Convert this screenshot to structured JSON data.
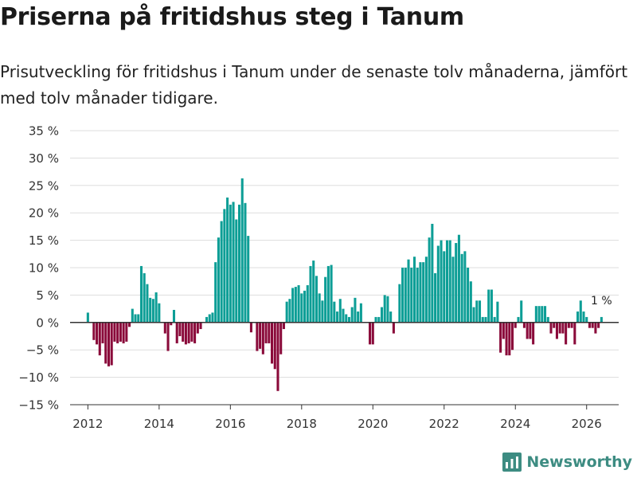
{
  "title": "Priserna på fritidshus steg i Tanum",
  "subtitle": "Prisutveckling för fritidshus i Tanum under de senaste tolv månaderna, jämfört med tolv månader tidigare.",
  "brand": {
    "name": "Newsworthy",
    "icon": "bar-chart-logo-icon"
  },
  "colors": {
    "positive": "#0d9e96",
    "negative": "#8a0a3a",
    "zero_line": "#333333",
    "grid": "#dddddd",
    "brand": "#3d8c82"
  },
  "chart_data": {
    "type": "bar",
    "title": "Priserna på fritidshus steg i Tanum",
    "xlabel": "",
    "ylabel": "",
    "ylim": [
      -15,
      35
    ],
    "y_ticks": [
      -15,
      -10,
      -5,
      0,
      5,
      10,
      15,
      20,
      25,
      30,
      35
    ],
    "y_tick_labels": [
      "−15 %",
      "−10 %",
      "−5 %",
      "0 %",
      "5 %",
      "10 %",
      "15 %",
      "20 %",
      "25 %",
      "30 %",
      "35 %"
    ],
    "xlim": [
      2011.5,
      2026.9
    ],
    "x_ticks": [
      2012,
      2014,
      2016,
      2018,
      2020,
      2022,
      2024,
      2026
    ],
    "x_tick_labels": [
      "2012",
      "2014",
      "2016",
      "2018",
      "2020",
      "2022",
      "2024",
      "2026"
    ],
    "start": {
      "year": 2012,
      "month": 1
    },
    "frequency": "monthly",
    "grid": true,
    "values": [
      1.8,
      0,
      -3.2,
      -4,
      -6,
      -3.8,
      -7.5,
      -8,
      -7.8,
      -3.5,
      -3.8,
      -3.5,
      -3.8,
      -3.5,
      -0.8,
      2.5,
      1.5,
      1.5,
      10.3,
      9,
      7,
      4.5,
      4.3,
      5.5,
      3.5,
      0,
      -2,
      -5.2,
      -0.5,
      2.3,
      -3.8,
      -2.5,
      -3.5,
      -4,
      -3.8,
      -3.5,
      -3.8,
      -2,
      -1.2,
      0,
      1,
      1.5,
      1.8,
      11,
      15.5,
      18.5,
      20.7,
      22.8,
      21.5,
      22,
      18.8,
      21.5,
      26.3,
      21.8,
      15.8,
      -1.8,
      0,
      -5.2,
      -4.8,
      -5.8,
      -3.8,
      -3.8,
      -7.5,
      -8.5,
      -12.5,
      -5.8,
      -1.2,
      3.8,
      4.3,
      6.3,
      6.5,
      6.8,
      5.3,
      5.8,
      6.8,
      10.3,
      11.3,
      8.5,
      5.3,
      4,
      8.3,
      10.3,
      10.5,
      3.8,
      2,
      4.3,
      2.5,
      1.5,
      1,
      2.8,
      4.5,
      2,
      3.5,
      0,
      0,
      -4,
      -4,
      1,
      1,
      2.8,
      5,
      4.8,
      2,
      -2,
      0,
      7,
      10,
      10,
      11.5,
      10,
      12,
      10,
      11,
      11,
      12,
      15.5,
      18,
      9,
      14,
      15,
      13,
      15,
      15,
      12,
      14.5,
      16,
      12.5,
      13,
      10,
      7.5,
      2.8,
      4,
      4,
      1,
      1,
      6,
      6,
      1,
      3.8,
      -5.5,
      -3,
      -6,
      -6,
      -5,
      -1,
      1,
      4,
      -1,
      -3,
      -3,
      -4,
      3,
      3,
      3,
      3,
      1,
      -2,
      -1,
      -3,
      -2,
      -2,
      -4,
      -1,
      -1,
      -4,
      2,
      4,
      2,
      1,
      -1,
      -1,
      -2,
      -1,
      1
    ],
    "annotations": [
      {
        "text": "1 %",
        "target": "last"
      }
    ]
  }
}
